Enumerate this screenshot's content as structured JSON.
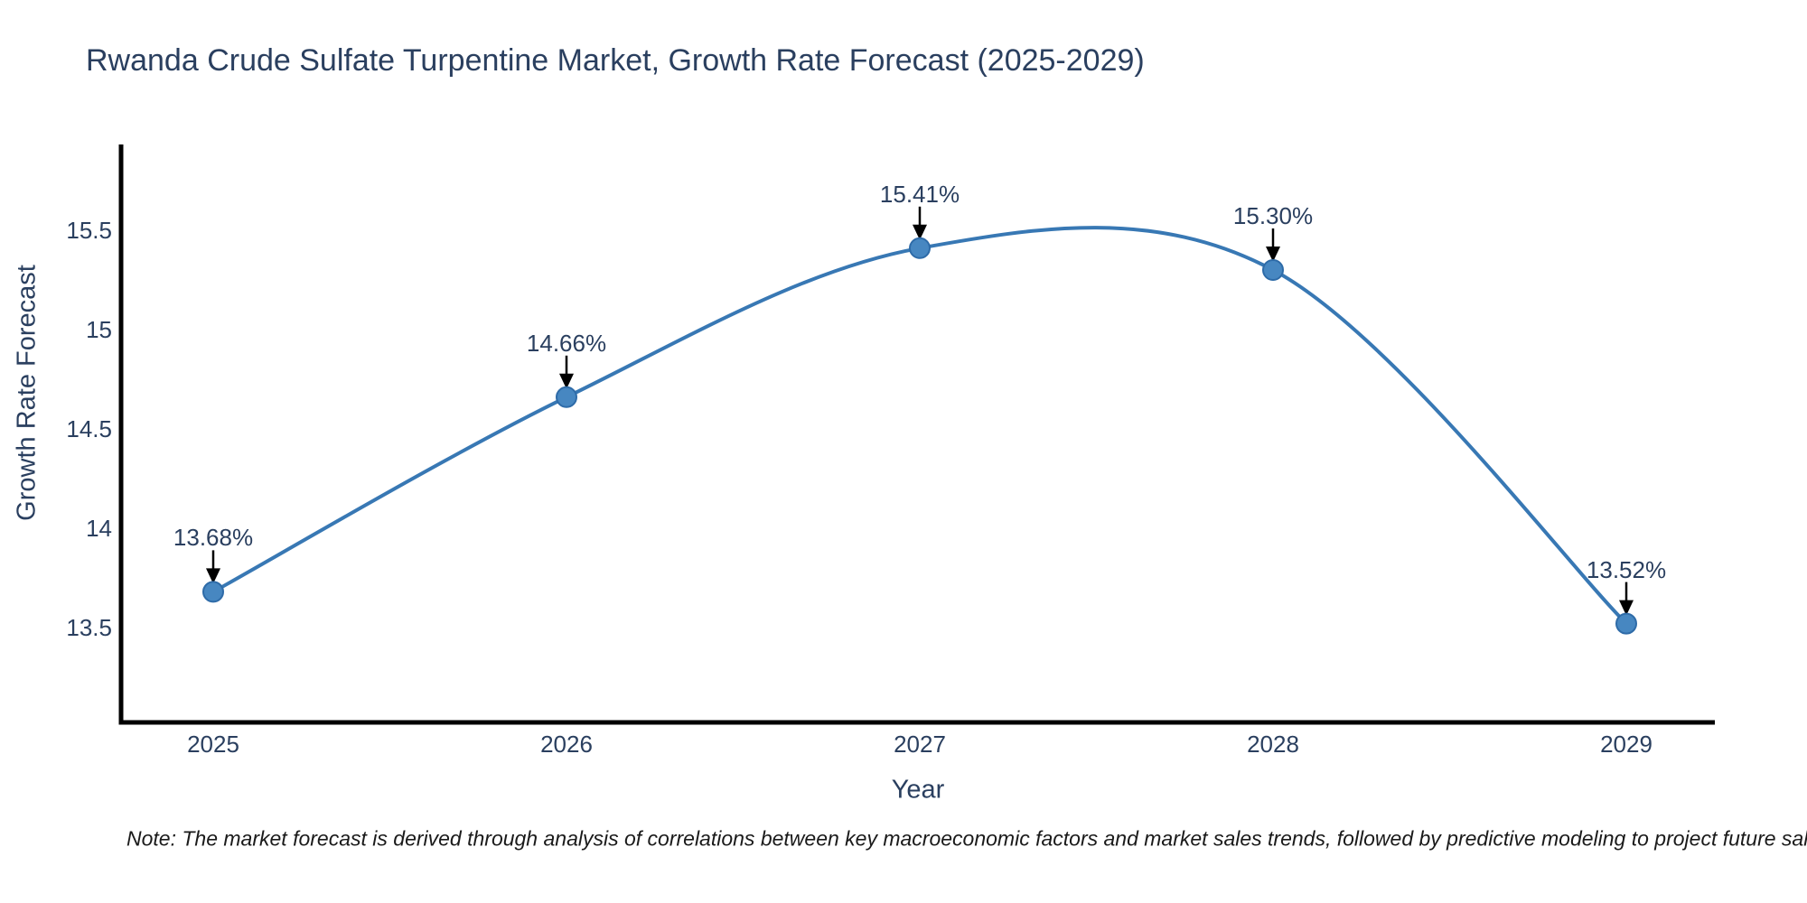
{
  "chart_data": {
    "type": "line",
    "line_shape": "spline",
    "title": "Rwanda Crude Sulfate Turpentine Market, Growth Rate Forecast (2025-2029)",
    "xlabel": "Year",
    "ylabel": "Growth Rate Forecast",
    "categories": [
      "2025",
      "2026",
      "2027",
      "2028",
      "2029"
    ],
    "values": [
      13.68,
      14.66,
      15.41,
      15.3,
      13.52
    ],
    "point_labels": [
      "13.68%",
      "14.66%",
      "15.41%",
      "15.30%",
      "13.52%"
    ],
    "yticks": [
      {
        "value": 13.5,
        "label": "13.5"
      },
      {
        "value": 14.0,
        "label": "14"
      },
      {
        "value": 14.5,
        "label": "14.5"
      },
      {
        "value": 15.0,
        "label": "15"
      },
      {
        "value": 15.5,
        "label": "15.5"
      }
    ],
    "ylim": [
      13.02,
      15.95
    ],
    "grid": false,
    "legend": false,
    "colors": {
      "line": "#3878b4",
      "marker_fill": "#4787c1",
      "marker_stroke": "#2e6ba8",
      "axis": "#000000",
      "text": "#2a3f5f",
      "annotation_arrow": "#000000"
    }
  },
  "note": {
    "text": "Note: The market forecast is derived through analysis of correlations between key macroeconomic factors and market sales trends, followed by predictive modeling to project future sal"
  }
}
